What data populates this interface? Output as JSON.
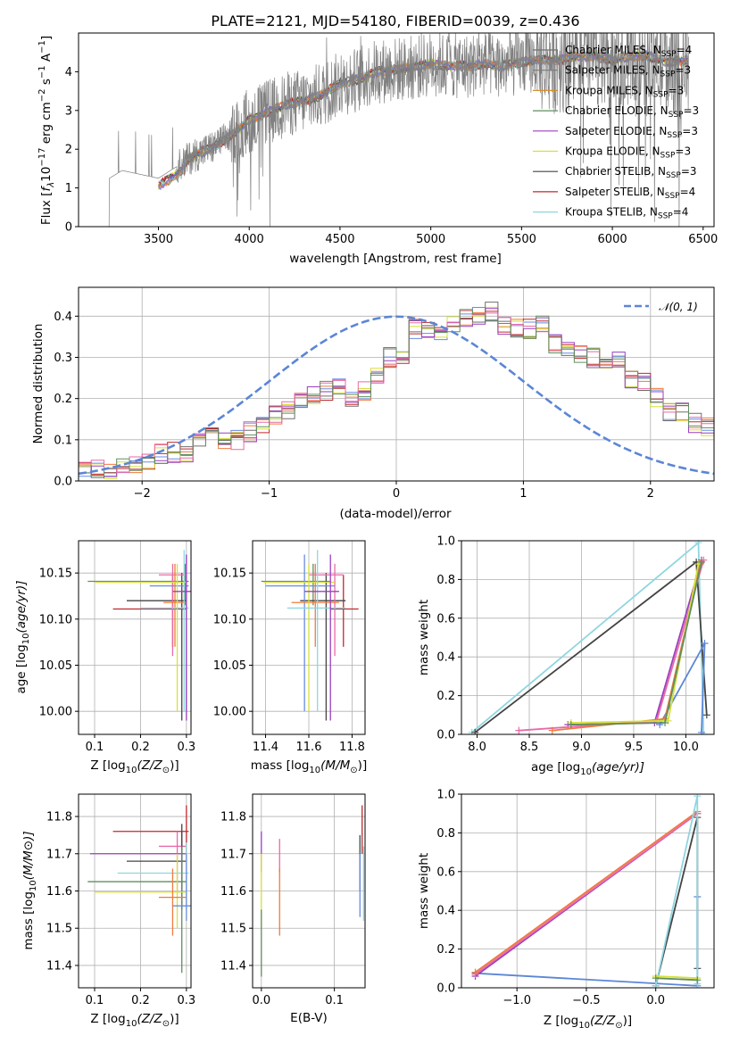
{
  "figure": {
    "title": "PLATE=2121, MJD=54180, FIBERID=0039, z=0.436"
  },
  "colors": {
    "Chabrier MILES": "#6f6f6f",
    "Salpeter MILES": "#7a7a7a",
    "Kroupa MILES": "#d98c2a",
    "Chabrier ELODIE": "#5f8f5f",
    "Salpeter ELODIE": "#9b3fbf",
    "Kroupa ELODIE": "#d6e03a",
    "Chabrier STELIB": "#444444",
    "Salpeter STELIB": "#c0282d",
    "Kroupa STELIB": "#8fd6e0",
    "data": "#808080",
    "normal_curve": "#5b86d6",
    "extra_blue": "#6a8be0",
    "extra_orange": "#ef7b3f",
    "extra_pink": "#e86aa8"
  },
  "chart_data": [
    {
      "id": "spectrum",
      "type": "line",
      "title": "PLATE=2121, MJD=54180, FIBERID=0039, z=0.436",
      "xlabel": "wavelength [Angstrom, rest frame]",
      "ylabel_parts": {
        "pre": "Flux [",
        "f": "f",
        "sub": "λ",
        "mid": "10",
        "exp1": "−17",
        "mid2": " erg cm",
        "exp2": "−2",
        "mid3": " s",
        "exp3": "−1",
        "mid4": " A",
        "exp4": "−1",
        "post": "]"
      },
      "xlim": [
        3060,
        6560
      ],
      "ylim": [
        0,
        5
      ],
      "xticks": [
        3500,
        4000,
        4500,
        5000,
        5500,
        6000,
        6500
      ],
      "yticks": [
        0,
        1,
        2,
        3,
        4
      ],
      "legend_position": "top-right",
      "legend": [
        {
          "name": "Chabrier MILES",
          "nssp": "4",
          "color": "#6f6f6f"
        },
        {
          "name": "Salpeter MILES",
          "nssp": "3",
          "color": "#7a7a7a"
        },
        {
          "name": "Kroupa MILES",
          "nssp": "3",
          "color": "#d98c2a"
        },
        {
          "name": "Chabrier ELODIE",
          "nssp": "3",
          "color": "#5f8f5f"
        },
        {
          "name": "Salpeter ELODIE",
          "nssp": "3",
          "color": "#9b3fbf"
        },
        {
          "name": "Kroupa ELODIE",
          "nssp": "3",
          "color": "#d6e03a"
        },
        {
          "name": "Chabrier STELIB",
          "nssp": "3",
          "color": "#444444"
        },
        {
          "name": "Salpeter STELIB",
          "nssp": "4",
          "color": "#c0282d"
        },
        {
          "name": "Kroupa STELIB",
          "nssp": "4",
          "color": "#8fd6e0"
        }
      ],
      "continuum": {
        "x": [
          3200,
          3230,
          3300,
          3400,
          3500,
          3600,
          3700,
          3800,
          3900,
          4000,
          4100,
          4200,
          4300,
          4400,
          4500,
          4600,
          4700,
          4800,
          4900,
          5000,
          5100,
          5200,
          5300,
          5400,
          5500,
          5600,
          5700,
          5800,
          5900,
          6000,
          6100,
          6200,
          6300,
          6420
        ],
        "y": [
          0,
          1.25,
          1.45,
          1.35,
          1.25,
          1.55,
          1.85,
          2.05,
          2.35,
          2.75,
          2.95,
          3.15,
          3.25,
          3.4,
          3.7,
          3.8,
          4.0,
          4.05,
          4.1,
          4.2,
          4.15,
          4.15,
          4.2,
          4.15,
          4.25,
          4.3,
          4.3,
          4.4,
          4.4,
          4.3,
          4.4,
          4.4,
          4.25,
          4.3
        ]
      },
      "model_start": 3500
    },
    {
      "id": "residuals",
      "type": "bar",
      "xlabel": "(data-model)/error",
      "ylabel": "Normed distribution",
      "xlim": [
        -2.5,
        2.5
      ],
      "ylim": [
        0,
        0.47
      ],
      "xticks": [
        -2,
        -1,
        0,
        1,
        2
      ],
      "yticks": [
        0.0,
        0.1,
        0.2,
        0.3,
        0.4
      ],
      "grid": true,
      "legend_position": "top-right",
      "legend": [
        {
          "name": "𝒩(0, 1)",
          "style": "dashed"
        }
      ],
      "bin_width": 0.1,
      "bin_start": -2.5,
      "base_hist": [
        0.027,
        0.027,
        0.03,
        0.035,
        0.04,
        0.05,
        0.065,
        0.07,
        0.07,
        0.1,
        0.11,
        0.1,
        0.1,
        0.12,
        0.14,
        0.16,
        0.17,
        0.2,
        0.21,
        0.22,
        0.23,
        0.2,
        0.22,
        0.25,
        0.3,
        0.29,
        0.37,
        0.37,
        0.36,
        0.38,
        0.4,
        0.4,
        0.41,
        0.38,
        0.37,
        0.37,
        0.38,
        0.33,
        0.32,
        0.31,
        0.3,
        0.29,
        0.29,
        0.25,
        0.24,
        0.2,
        0.17,
        0.17,
        0.14,
        0.13,
        0.11,
        0.1,
        0.09,
        0.08,
        0.085,
        0.075,
        0.055,
        0.05,
        0.05,
        0.045
      ]
    },
    {
      "id": "age_vs_Z",
      "type": "scatter",
      "xlabel_pre": "Z [log",
      "xlabel_sub": "10",
      "xlabel_frac": "(Z/Z",
      "xlabel_sun": "⊙",
      "xlabel_post": ")]",
      "ylabel_pre": "age  [log",
      "ylabel_sub": "10",
      "ylabel_post": "(age/yr)]",
      "xlim": [
        0.065,
        0.31
      ],
      "ylim": [
        9.975,
        10.185
      ],
      "xticks": [
        0.1,
        0.2,
        0.3
      ],
      "yticks": [
        10.0,
        10.05,
        10.1,
        10.15
      ],
      "grid": true,
      "points": [
        {
          "x": 0.297,
          "y": 10.141,
          "xlo": 0.085,
          "xhi": 0.305,
          "ylo": 10.115,
          "yhi": 10.16,
          "color": "#5f8f5f"
        },
        {
          "x": 0.27,
          "y": 10.111,
          "xlo": 0.14,
          "xhi": 0.3,
          "ylo": 10.07,
          "yhi": 10.148,
          "color": "#c0282d"
        },
        {
          "x": 0.29,
          "y": 10.12,
          "xlo": 0.17,
          "xhi": 0.3,
          "ylo": 9.99,
          "yhi": 10.15,
          "color": "#444444"
        },
        {
          "x": 0.27,
          "y": 10.148,
          "xlo": 0.24,
          "xhi": 0.3,
          "ylo": 10.06,
          "yhi": 10.16,
          "color": "#e86aa8"
        },
        {
          "x": 0.3,
          "y": 10.136,
          "xlo": 0.22,
          "xhi": 0.305,
          "ylo": 10.0,
          "yhi": 10.17,
          "color": "#6a8be0"
        },
        {
          "x": 0.275,
          "y": 10.118,
          "xlo": 0.25,
          "xhi": 0.3,
          "ylo": 10.07,
          "yhi": 10.16,
          "color": "#ef7b3f"
        },
        {
          "x": 0.28,
          "y": 10.14,
          "xlo": 0.1,
          "xhi": 0.3,
          "ylo": 10.0,
          "yhi": 10.16,
          "color": "#d6e03a"
        },
        {
          "x": 0.295,
          "y": 10.112,
          "xlo": 0.2,
          "xhi": 0.305,
          "ylo": 10.0,
          "yhi": 10.175,
          "color": "#8fd6e0"
        },
        {
          "x": 0.3,
          "y": 10.13,
          "xlo": 0.27,
          "xhi": 0.31,
          "ylo": 9.99,
          "yhi": 10.17,
          "color": "#9b3fbf"
        }
      ]
    },
    {
      "id": "age_vs_mass",
      "type": "scatter",
      "xlabel_pre": "mass [log",
      "xlabel_sub": "10",
      "xlabel_frac": "(M/M",
      "xlabel_sun": "⊙",
      "xlabel_post": ")]",
      "ylabel_pre": "",
      "ylabel_sub": "",
      "ylabel_post": "",
      "xlim": [
        11.34,
        11.86
      ],
      "ylim": [
        9.975,
        10.185
      ],
      "xticks": [
        11.4,
        11.6,
        11.8
      ],
      "yticks": [
        10.0,
        10.05,
        10.1,
        10.15
      ],
      "grid": true,
      "points": [
        {
          "x": 11.62,
          "y": 10.141,
          "xlo": 11.38,
          "xhi": 11.7,
          "ylo": 10.115,
          "yhi": 10.16,
          "color": "#5f8f5f"
        },
        {
          "x": 11.76,
          "y": 10.111,
          "xlo": 11.7,
          "xhi": 11.83,
          "ylo": 10.07,
          "yhi": 10.148,
          "color": "#c0282d"
        },
        {
          "x": 11.68,
          "y": 10.12,
          "xlo": 11.56,
          "xhi": 11.77,
          "ylo": 9.99,
          "yhi": 10.15,
          "color": "#444444"
        },
        {
          "x": 11.72,
          "y": 10.148,
          "xlo": 11.6,
          "xhi": 11.76,
          "ylo": 10.06,
          "yhi": 10.16,
          "color": "#e86aa8"
        },
        {
          "x": 11.58,
          "y": 10.136,
          "xlo": 11.4,
          "xhi": 11.72,
          "ylo": 10.0,
          "yhi": 10.17,
          "color": "#6a8be0"
        },
        {
          "x": 11.63,
          "y": 10.118,
          "xlo": 11.52,
          "xhi": 11.74,
          "ylo": 10.07,
          "yhi": 10.16,
          "color": "#ef7b3f"
        },
        {
          "x": 11.6,
          "y": 10.14,
          "xlo": 11.39,
          "xhi": 11.72,
          "ylo": 10.0,
          "yhi": 10.16,
          "color": "#d6e03a"
        },
        {
          "x": 11.64,
          "y": 10.112,
          "xlo": 11.5,
          "xhi": 11.77,
          "ylo": 10.0,
          "yhi": 10.175,
          "color": "#8fd6e0"
        },
        {
          "x": 11.7,
          "y": 10.13,
          "xlo": 11.58,
          "xhi": 11.74,
          "ylo": 9.99,
          "yhi": 10.17,
          "color": "#9b3fbf"
        }
      ]
    },
    {
      "id": "weight_vs_age",
      "type": "line",
      "xlabel_pre": "age  [log",
      "xlabel_sub": "10",
      "xlabel_frac": "(age/yr)]",
      "xlabel_sun": "",
      "xlabel_post": "",
      "ylabel": "mass weight",
      "xlim": [
        7.85,
        10.27
      ],
      "ylim": [
        0,
        1
      ],
      "xticks": [
        8.0,
        8.5,
        9.0,
        9.5,
        10.0
      ],
      "yticks": [
        0.0,
        0.2,
        0.4,
        0.6,
        0.8,
        1.0
      ],
      "grid": true,
      "series": [
        {
          "color": "#8fd6e0",
          "x": [
            7.95,
            10.12,
            10.17
          ],
          "y": [
            0.01,
            0.99,
            0.0
          ]
        },
        {
          "color": "#444444",
          "x": [
            7.98,
            10.1,
            10.2
          ],
          "y": [
            0.01,
            0.89,
            0.1
          ]
        },
        {
          "color": "#5b86d6",
          "x": [
            9.75,
            10.18,
            10.15
          ],
          "y": [
            0.05,
            0.47,
            0.01
          ]
        },
        {
          "color": "#9b3fbf",
          "x": [
            8.87,
            9.7,
            10.15
          ],
          "y": [
            0.05,
            0.06,
            0.9
          ]
        },
        {
          "color": "#e86aa8",
          "x": [
            8.4,
            9.72,
            10.17
          ],
          "y": [
            0.02,
            0.07,
            0.9
          ]
        },
        {
          "color": "#ef7b3f",
          "x": [
            8.72,
            9.8,
            10.14
          ],
          "y": [
            0.02,
            0.08,
            0.88
          ]
        },
        {
          "color": "#d6e03a",
          "x": [
            8.9,
            9.83,
            10.12
          ],
          "y": [
            0.06,
            0.07,
            0.88
          ]
        },
        {
          "color": "#5f8f5f",
          "x": [
            8.9,
            9.8,
            10.15
          ],
          "y": [
            0.05,
            0.06,
            0.89
          ]
        }
      ]
    },
    {
      "id": "mass_vs_Z",
      "type": "scatter",
      "xlabel_pre": "Z [log",
      "xlabel_sub": "10",
      "xlabel_frac": "(Z/Z",
      "xlabel_sun": "⊙",
      "xlabel_post": ")]",
      "ylabel_pre": "mass [log",
      "ylabel_sub": "10",
      "ylabel_post": "(M/M⊙)]",
      "xlim": [
        0.065,
        0.31
      ],
      "ylim": [
        11.34,
        11.86
      ],
      "xticks": [
        0.1,
        0.2,
        0.3
      ],
      "yticks": [
        11.4,
        11.5,
        11.6,
        11.7,
        11.8
      ],
      "grid": true,
      "points": [
        {
          "x": 0.3,
          "y": 11.76,
          "xlo": 0.14,
          "xhi": 0.305,
          "ylo": 11.7,
          "yhi": 11.83,
          "color": "#c0282d"
        },
        {
          "x": 0.28,
          "y": 11.72,
          "xlo": 0.24,
          "xhi": 0.3,
          "ylo": 11.6,
          "yhi": 11.76,
          "color": "#e86aa8"
        },
        {
          "x": 0.29,
          "y": 11.7,
          "xlo": 0.09,
          "xhi": 0.3,
          "ylo": 11.6,
          "yhi": 11.76,
          "color": "#9b3fbf"
        },
        {
          "x": 0.29,
          "y": 11.68,
          "xlo": 0.17,
          "xhi": 0.3,
          "ylo": 11.55,
          "yhi": 11.78,
          "color": "#444444"
        },
        {
          "x": 0.3,
          "y": 11.648,
          "xlo": 0.15,
          "xhi": 0.305,
          "ylo": 11.55,
          "yhi": 11.73,
          "color": "#8fd6e0"
        },
        {
          "x": 0.29,
          "y": 11.625,
          "xlo": 0.085,
          "xhi": 0.3,
          "ylo": 11.38,
          "yhi": 11.72,
          "color": "#5f8f5f"
        },
        {
          "x": 0.28,
          "y": 11.597,
          "xlo": 0.1,
          "xhi": 0.3,
          "ylo": 11.5,
          "yhi": 11.7,
          "color": "#d6e03a"
        },
        {
          "x": 0.27,
          "y": 11.583,
          "xlo": 0.24,
          "xhi": 0.3,
          "ylo": 11.48,
          "yhi": 11.66,
          "color": "#ef7b3f"
        },
        {
          "x": 0.3,
          "y": 11.56,
          "xlo": 0.27,
          "xhi": 0.31,
          "ylo": 11.52,
          "yhi": 11.7,
          "color": "#6a8be0"
        }
      ]
    },
    {
      "id": "mass_vs_ebv",
      "type": "scatter",
      "xlabel": "E(B-V)",
      "xlim": [
        -0.012,
        0.142
      ],
      "ylim": [
        11.34,
        11.86
      ],
      "xticks": [
        0.0,
        0.1
      ],
      "yticks": [
        11.4,
        11.5,
        11.6,
        11.7,
        11.8
      ],
      "grid": true,
      "points": [
        {
          "x": 0.0,
          "y": 11.7,
          "xlo": 0.0,
          "xhi": 0.0,
          "ylo": 11.65,
          "yhi": 11.76,
          "color": "#9b3fbf"
        },
        {
          "x": 0.0,
          "y": 11.6,
          "xlo": 0.0,
          "xhi": 0.0,
          "ylo": 11.5,
          "yhi": 11.7,
          "color": "#d6e03a"
        },
        {
          "x": 0.0,
          "y": 11.45,
          "xlo": 0.0,
          "xhi": 0.0,
          "ylo": 11.37,
          "yhi": 11.55,
          "color": "#5f8f5f"
        },
        {
          "x": 0.025,
          "y": 11.7,
          "xlo": 0.025,
          "xhi": 0.025,
          "ylo": 11.65,
          "yhi": 11.74,
          "color": "#e86aa8"
        },
        {
          "x": 0.025,
          "y": 11.57,
          "xlo": 0.025,
          "xhi": 0.025,
          "ylo": 11.48,
          "yhi": 11.66,
          "color": "#ef7b3f"
        },
        {
          "x": 0.135,
          "y": 11.68,
          "xlo": 0.135,
          "xhi": 0.135,
          "ylo": 11.6,
          "yhi": 11.75,
          "color": "#444444"
        },
        {
          "x": 0.138,
          "y": 11.76,
          "xlo": 0.138,
          "xhi": 0.138,
          "ylo": 11.7,
          "yhi": 11.83,
          "color": "#c0282d"
        },
        {
          "x": 0.135,
          "y": 11.6,
          "xlo": 0.135,
          "xhi": 0.135,
          "ylo": 11.53,
          "yhi": 11.7,
          "color": "#6a8be0"
        },
        {
          "x": 0.14,
          "y": 11.64,
          "xlo": 0.14,
          "xhi": 0.14,
          "ylo": 11.52,
          "yhi": 11.72,
          "color": "#8fd6e0"
        }
      ]
    },
    {
      "id": "weight_vs_Z",
      "type": "line",
      "xlabel_pre": "Z [log",
      "xlabel_sub": "10",
      "xlabel_frac": "(Z/Z",
      "xlabel_sun": "⊙",
      "xlabel_post": ")]",
      "ylabel": "mass weight",
      "xlim": [
        -1.4,
        0.42
      ],
      "ylim": [
        0,
        1
      ],
      "xticks": [
        -1.0,
        -0.5,
        0.0
      ],
      "yticks": [
        0.0,
        0.2,
        0.4,
        0.6,
        0.8,
        1.0
      ],
      "grid": true,
      "series": [
        {
          "color": "#5b86d6",
          "x": [
            -1.3,
            0.3,
            0.3
          ],
          "y": [
            0.075,
            0.01,
            0.47
          ]
        },
        {
          "color": "#9b3fbf",
          "x": [
            -1.3,
            0.3
          ],
          "y": [
            0.06,
            0.9
          ]
        },
        {
          "color": "#e86aa8",
          "x": [
            -1.3,
            0.3
          ],
          "y": [
            0.07,
            0.9
          ]
        },
        {
          "color": "#ef7b3f",
          "x": [
            -1.3,
            0.3
          ],
          "y": [
            0.08,
            0.91
          ]
        },
        {
          "color": "#444444",
          "x": [
            0.0,
            0.3,
            0.3
          ],
          "y": [
            0.01,
            0.88,
            0.1
          ]
        },
        {
          "color": "#8fd6e0",
          "x": [
            0.0,
            0.3,
            0.3
          ],
          "y": [
            0.01,
            0.99,
            0.02
          ]
        },
        {
          "color": "#d6e03a",
          "x": [
            0.0,
            0.3
          ],
          "y": [
            0.06,
            0.05
          ]
        },
        {
          "color": "#5f8f5f",
          "x": [
            0.0,
            0.3
          ],
          "y": [
            0.05,
            0.04
          ]
        }
      ]
    }
  ]
}
